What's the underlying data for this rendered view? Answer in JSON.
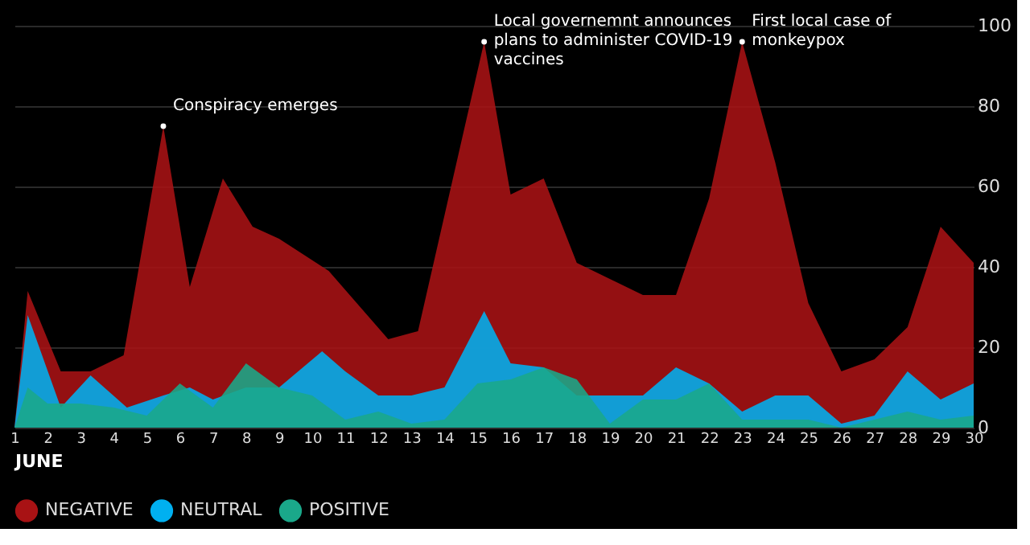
{
  "chart_data": {
    "type": "area",
    "xlabel": "JUNE",
    "xlim": [
      1,
      30
    ],
    "xticks": [
      1,
      2,
      3,
      4,
      5,
      6,
      7,
      8,
      9,
      10,
      11,
      12,
      13,
      14,
      15,
      16,
      17,
      18,
      19,
      20,
      21,
      22,
      23,
      24,
      25,
      26,
      27,
      28,
      29,
      30
    ],
    "ylim": [
      0,
      100
    ],
    "yticks": [
      0,
      20,
      40,
      60,
      80,
      100
    ],
    "grid": "y",
    "legend": "bottom",
    "series": [
      {
        "name": "NEGATIVE",
        "color": "#a81214",
        "x": [
          1,
          1.4,
          2.4,
          3.3,
          4.3,
          5.5,
          6.3,
          7.3,
          8.2,
          9,
          10.5,
          12.3,
          13.2,
          15.2,
          16,
          17,
          18,
          20,
          21,
          22,
          23,
          24,
          25,
          26,
          27,
          28,
          29,
          30
        ],
        "values": [
          0,
          34,
          14,
          14,
          18,
          75,
          35,
          62,
          50,
          47,
          39,
          22,
          24,
          96,
          58,
          62,
          41,
          33,
          33,
          57,
          96,
          66,
          31,
          14,
          17,
          25,
          50,
          41
        ]
      },
      {
        "name": "NEUTRAL",
        "color": "#00b0f0",
        "x": [
          1,
          1.4,
          2.4,
          3.3,
          4.4,
          5.5,
          6.3,
          7,
          8,
          9,
          10.3,
          11,
          12,
          13,
          14,
          15.2,
          16,
          17,
          18,
          19,
          20,
          21,
          22,
          23,
          24,
          25,
          26,
          27,
          28,
          29,
          30
        ],
        "values": [
          0,
          28,
          5,
          13,
          5,
          8,
          10,
          7,
          10,
          10,
          19,
          14,
          8,
          8,
          10,
          29,
          16,
          15,
          8,
          8,
          8,
          15,
          11,
          4,
          8,
          8,
          1,
          3,
          14,
          7,
          11
        ]
      },
      {
        "name": "POSITIVE",
        "color": "#1aa88a",
        "x": [
          1,
          1.4,
          2,
          3,
          4,
          5,
          6,
          7,
          8,
          9,
          10,
          11,
          12,
          13,
          14,
          15,
          16,
          17,
          18,
          19,
          20,
          21,
          22,
          23,
          24,
          25,
          26,
          27,
          28,
          29,
          30
        ],
        "values": [
          0,
          10,
          6,
          6,
          5,
          3,
          11,
          5,
          16,
          10,
          8,
          2,
          4,
          1,
          2,
          11,
          12,
          15,
          12,
          1,
          7,
          7,
          11,
          2,
          2,
          2,
          0,
          2,
          4,
          2,
          3
        ]
      }
    ],
    "annotations": [
      {
        "text": "Conspiracy emerges",
        "x": 5.5,
        "y": 75
      },
      {
        "text": "Local governemnt announces\nplans to administer COVID-19\nvaccines",
        "x": 15.2,
        "y": 96
      },
      {
        "text": "First local case of\nmonkeypox",
        "x": 23,
        "y": 96
      }
    ]
  }
}
